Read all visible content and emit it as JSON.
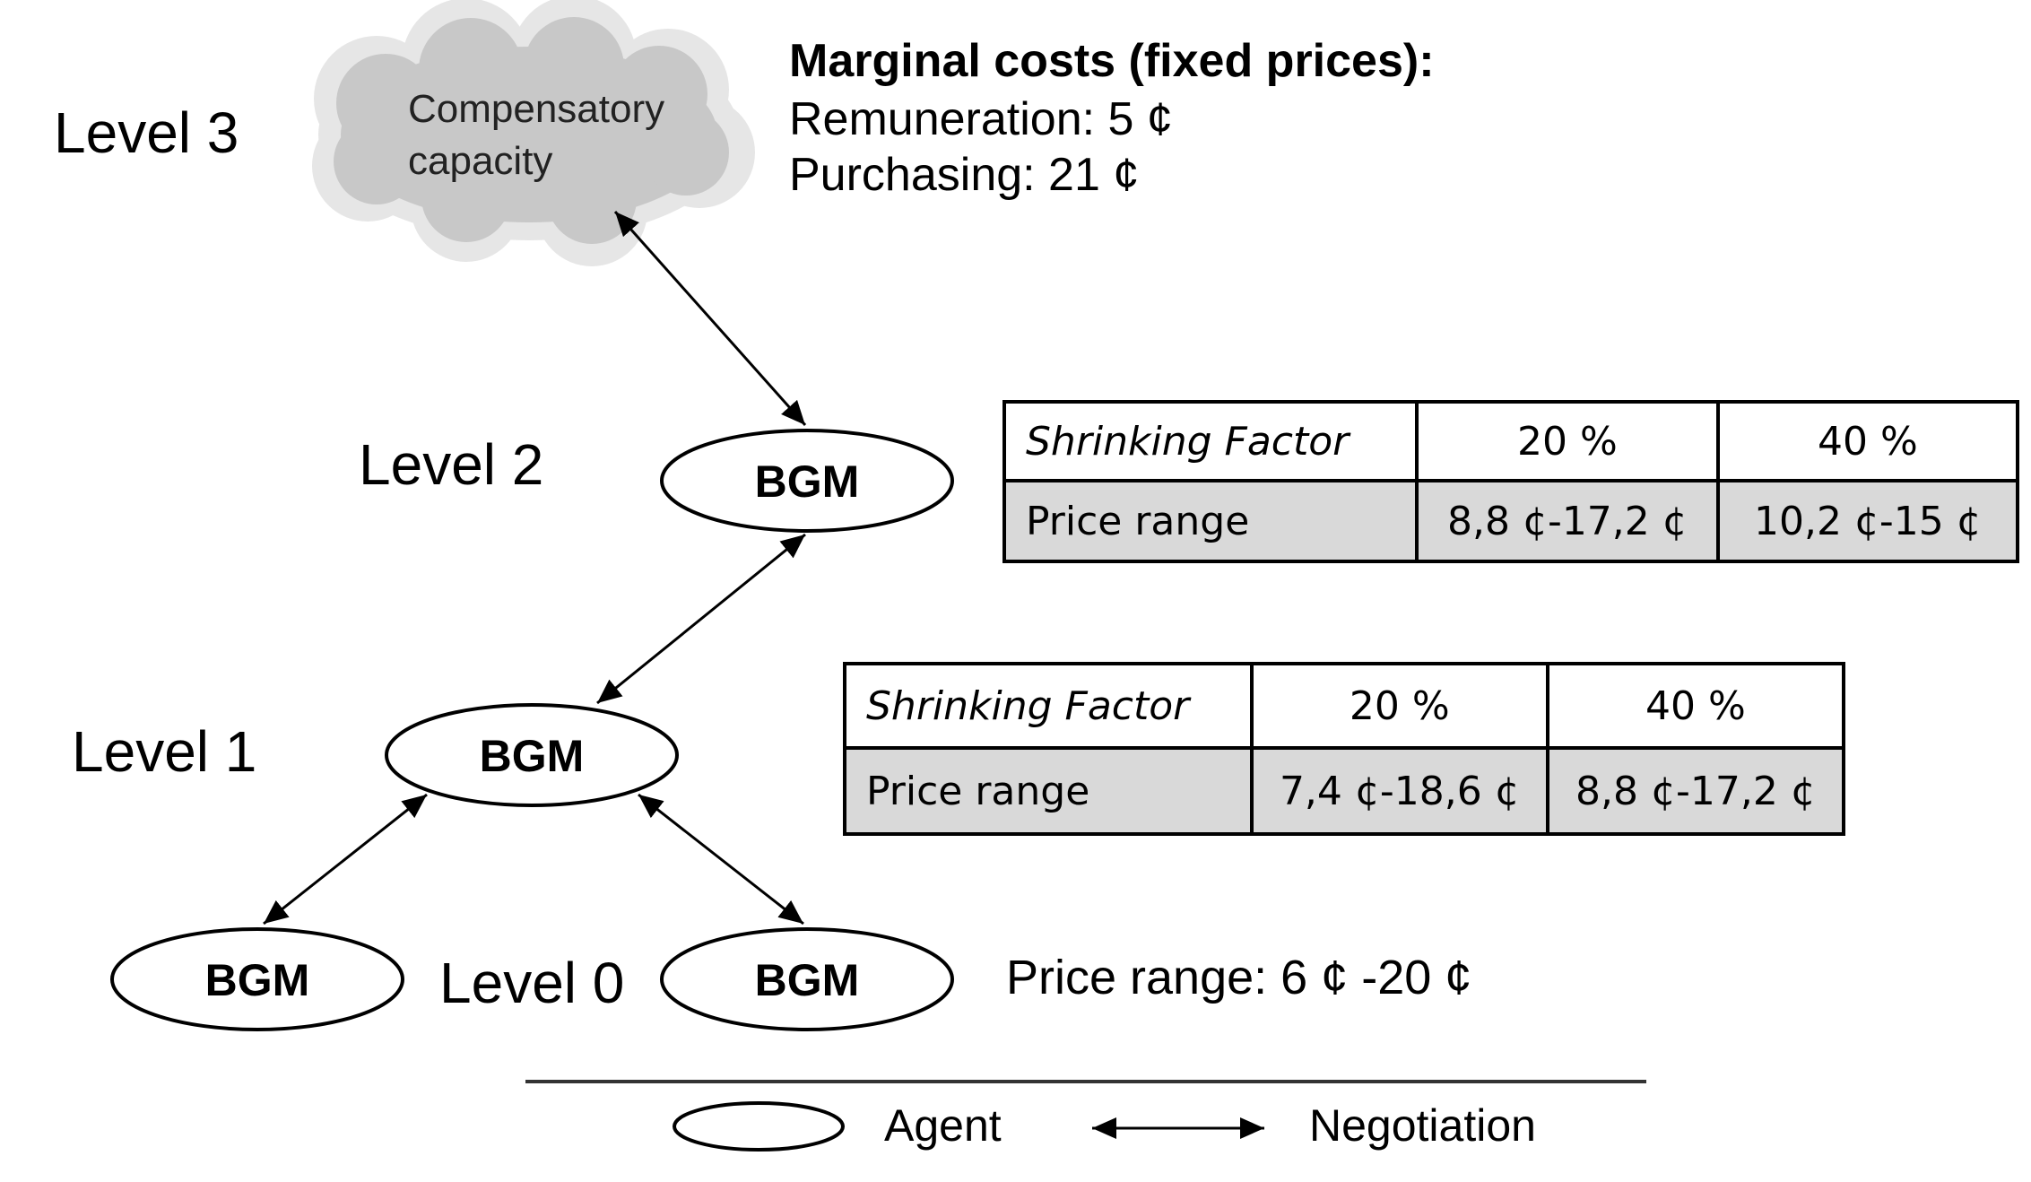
{
  "levels": {
    "level3": "Level 3",
    "level2": "Level 2",
    "level1": "Level 1",
    "level0": "Level 0"
  },
  "cloud": {
    "line1": "Compensatory",
    "line2": "capacity"
  },
  "agents": {
    "level2": "BGM",
    "level1": "BGM",
    "level0_left": "BGM",
    "level0_right": "BGM"
  },
  "marginal_costs": {
    "title": "Marginal costs (fixed prices):",
    "remuneration": "Remuneration: 5 ¢",
    "purchasing": "Purchasing: 21 ¢"
  },
  "table_level2": {
    "header_label": "Shrinking Factor",
    "col1": "20 %",
    "col2": "40 %",
    "row_label": "Price range",
    "val1": "8,8 ¢-17,2 ¢",
    "val2": "10,2 ¢-15 ¢"
  },
  "table_level1": {
    "header_label": "Shrinking Factor",
    "col1": "20 %",
    "col2": "40 %",
    "row_label": "Price range",
    "val1": "7,4 ¢-18,6 ¢",
    "val2": "8,8 ¢-17,2 ¢"
  },
  "level0_price": "Price range: 6 ¢ -20 ¢",
  "legend": {
    "agent": "Agent",
    "negotiation": "Negotiation"
  },
  "colors": {
    "cloud_fill": "#c8c8c8",
    "table_row_fill": "#d9d9d9"
  }
}
